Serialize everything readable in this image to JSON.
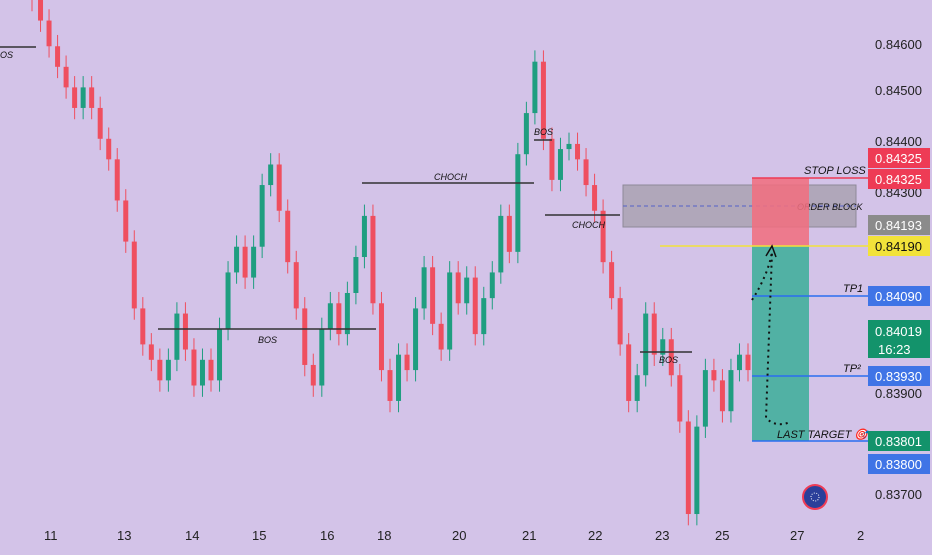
{
  "chart_data": {
    "type": "candlestick",
    "ylim": [
      0.8365,
      0.8472
    ],
    "x_ticks": [
      "11",
      "13",
      "14",
      "15",
      "16",
      "18",
      "20",
      "21",
      "22",
      "23",
      "25",
      "27",
      "2"
    ],
    "y_ticks": [
      "0.84600",
      "0.84500",
      "0.84400",
      "0.84300",
      "0.83900",
      "0.83700"
    ],
    "closes": [
      0.8472,
      0.8468,
      0.8463,
      0.8459,
      0.8455,
      0.8451,
      0.8455,
      0.8451,
      0.8445,
      0.8441,
      0.8433,
      0.8425,
      0.8412,
      0.8405,
      0.8402,
      0.8398,
      0.8402,
      0.8411,
      0.8404,
      0.8397,
      0.8402,
      0.8398,
      0.8408,
      0.8419,
      0.8424,
      0.8418,
      0.8424,
      0.8436,
      0.844,
      0.8431,
      0.8421,
      0.8412,
      0.8401,
      0.8397,
      0.8408,
      0.8413,
      0.8407,
      0.8415,
      0.8422,
      0.843,
      0.8413,
      0.84,
      0.8394,
      0.8403,
      0.84,
      0.8412,
      0.842,
      0.8409,
      0.8404,
      0.8419,
      0.8413,
      0.8418,
      0.8407,
      0.8414,
      0.8419,
      0.843,
      0.8423,
      0.8442,
      0.845,
      0.846,
      0.8445,
      0.8437,
      0.8443,
      0.8444,
      0.8441,
      0.8436,
      0.8431,
      0.8421,
      0.8414,
      0.8405,
      0.8394,
      0.8399,
      0.8411,
      0.8403,
      0.8406,
      0.8399,
      0.839,
      0.8372,
      0.8389,
      0.84,
      0.8398,
      0.8392,
      0.84,
      0.8403,
      0.84
    ],
    "levels": [
      {
        "name": "stop_loss",
        "value": 0.84325
      },
      {
        "name": "order_block_top",
        "value": 0.8431
      },
      {
        "name": "order_block_bottom",
        "value": 0.84193
      },
      {
        "name": "entry",
        "value": 0.8419
      },
      {
        "name": "tp1",
        "value": 0.8409
      },
      {
        "name": "current",
        "value": 0.84019
      },
      {
        "name": "tp2",
        "value": 0.8393
      },
      {
        "name": "last_target",
        "value": 0.838
      }
    ],
    "annotations": [
      "BOS",
      "CHOCH",
      "CHOCH",
      "BOS",
      "BOS",
      "BOS",
      "ORDER BLOCK",
      "STOP LOSS",
      "TP1",
      "TP²",
      "LAST TARGET 🎯",
      "OS"
    ]
  },
  "labels": {
    "stop_loss": "STOP LOSS",
    "order_block": "ORDER BLOCK",
    "tp1": "TP1",
    "tp2": "TP²",
    "last_target": "LAST TARGET 🎯",
    "bos": "BOS",
    "choch": "CHOCH",
    "os": "OS"
  },
  "price_tags": {
    "sl_a": "0.84325",
    "sl_b": "0.84325",
    "ob": "0.84193",
    "entry": "0.84190",
    "tp1": "0.84090",
    "current": "0.84019",
    "countdown": "16:23",
    "tp2": "0.83930",
    "target_a": "0.83801",
    "target_b": "0.83800"
  },
  "colors": {
    "background": "#d3c3e8",
    "up": "#1f9e80",
    "down": "#ef4f5f",
    "stop_zone": "#f07080",
    "profit_zone": "#3fae9a",
    "order_block": "#a9a2b2",
    "blue_line": "#2a6ef0",
    "yellow_line": "#f2e23a",
    "tag_red": "#ee3b55",
    "tag_gray": "#8b8b8b",
    "tag_yellow": "#f2e23a",
    "tag_blue": "#3f74e6",
    "tag_green": "#13936b"
  }
}
